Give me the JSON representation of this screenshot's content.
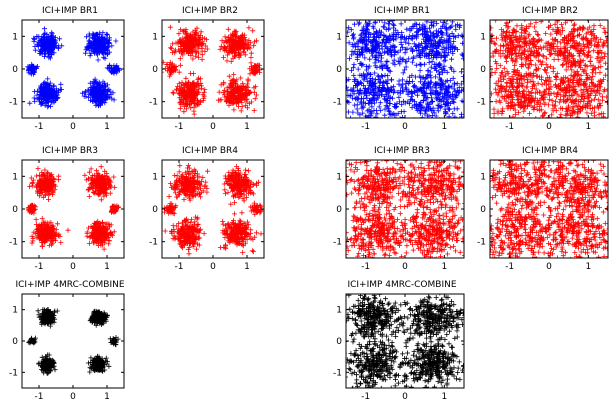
{
  "colors": {
    "blue": "#0000ff",
    "red": "#ff0000",
    "black": "#000000"
  },
  "chart_data": [
    {
      "id": "p1",
      "type": "scatter",
      "marker": "plus",
      "color": "#0000ff",
      "title": "ICI+IMP BR1",
      "xlim": [
        -1.5,
        1.5
      ],
      "ylim": [
        -1.5,
        1.5
      ],
      "xticks": [
        -1,
        0,
        1
      ],
      "yticks": [
        1,
        0,
        -1
      ],
      "clusters": [
        {
          "x": -0.75,
          "y": 0.75,
          "sx": 0.16,
          "sy": 0.16,
          "n": 220
        },
        {
          "x": 0.75,
          "y": 0.75,
          "sx": 0.16,
          "sy": 0.16,
          "n": 220
        },
        {
          "x": -0.75,
          "y": -0.75,
          "sx": 0.16,
          "sy": 0.16,
          "n": 220
        },
        {
          "x": 0.75,
          "y": -0.75,
          "sx": 0.16,
          "sy": 0.16,
          "n": 220
        },
        {
          "x": -1.2,
          "y": 0.0,
          "sx": 0.07,
          "sy": 0.07,
          "n": 45
        },
        {
          "x": 1.2,
          "y": 0.0,
          "sx": 0.07,
          "sy": 0.07,
          "n": 45
        }
      ]
    },
    {
      "id": "p2",
      "type": "scatter",
      "marker": "plus",
      "color": "#ff0000",
      "title": "ICI+IMP BR2",
      "xlim": [
        -1.5,
        1.5
      ],
      "ylim": [
        -1.5,
        1.5
      ],
      "xticks": [
        -1,
        0,
        1
      ],
      "yticks": [
        1,
        0,
        -1
      ],
      "clusters": [
        {
          "x": -0.7,
          "y": 0.75,
          "sx": 0.2,
          "sy": 0.2,
          "n": 220
        },
        {
          "x": 0.7,
          "y": 0.75,
          "sx": 0.2,
          "sy": 0.2,
          "n": 220
        },
        {
          "x": -0.7,
          "y": -0.75,
          "sx": 0.2,
          "sy": 0.2,
          "n": 220
        },
        {
          "x": 0.7,
          "y": -0.75,
          "sx": 0.2,
          "sy": 0.2,
          "n": 220
        },
        {
          "x": -1.25,
          "y": 0.0,
          "sx": 0.08,
          "sy": 0.08,
          "n": 45
        },
        {
          "x": 1.25,
          "y": 0.0,
          "sx": 0.08,
          "sy": 0.08,
          "n": 45
        }
      ]
    },
    {
      "id": "p3",
      "type": "scatter",
      "marker": "plus",
      "color": "#0000ff",
      "title": "ICI+IMP BR1",
      "xlim": [
        -1.5,
        1.5
      ],
      "ylim": [
        -1.5,
        1.5
      ],
      "xticks": [
        -1,
        0,
        1
      ],
      "yticks": [
        1,
        0,
        -1
      ],
      "clusters": [
        {
          "x": -0.75,
          "y": 0.75,
          "sx": 0.42,
          "sy": 0.42,
          "n": 300
        },
        {
          "x": 0.75,
          "y": 0.75,
          "sx": 0.42,
          "sy": 0.42,
          "n": 300
        },
        {
          "x": -0.75,
          "y": -0.75,
          "sx": 0.42,
          "sy": 0.42,
          "n": 300
        },
        {
          "x": 0.75,
          "y": -0.75,
          "sx": 0.42,
          "sy": 0.42,
          "n": 300
        }
      ]
    },
    {
      "id": "p4",
      "type": "scatter",
      "marker": "plus",
      "color": "#ff0000",
      "title": "ICI+IMP BR2",
      "xlim": [
        -1.5,
        1.5
      ],
      "ylim": [
        -1.5,
        1.5
      ],
      "xticks": [
        -1,
        0,
        1
      ],
      "yticks": [
        1,
        0,
        -1
      ],
      "clusters": [
        {
          "x": -0.75,
          "y": 0.75,
          "sx": 0.45,
          "sy": 0.45,
          "n": 300
        },
        {
          "x": 0.75,
          "y": 0.75,
          "sx": 0.45,
          "sy": 0.45,
          "n": 300
        },
        {
          "x": -0.75,
          "y": -0.75,
          "sx": 0.45,
          "sy": 0.45,
          "n": 300
        },
        {
          "x": 0.75,
          "y": -0.75,
          "sx": 0.45,
          "sy": 0.45,
          "n": 300
        }
      ]
    },
    {
      "id": "p5",
      "type": "scatter",
      "marker": "plus",
      "color": "#ff0000",
      "title": "ICI+IMP BR3",
      "xlim": [
        -1.5,
        1.5
      ],
      "ylim": [
        -1.5,
        1.5
      ],
      "xticks": [
        -1,
        0,
        1
      ],
      "yticks": [
        1,
        0,
        -1
      ],
      "clusters": [
        {
          "x": -0.8,
          "y": 0.75,
          "sx": 0.16,
          "sy": 0.16,
          "n": 220
        },
        {
          "x": 0.8,
          "y": 0.75,
          "sx": 0.16,
          "sy": 0.16,
          "n": 220
        },
        {
          "x": -0.8,
          "y": -0.75,
          "sx": 0.16,
          "sy": 0.16,
          "n": 220
        },
        {
          "x": 0.8,
          "y": -0.75,
          "sx": 0.16,
          "sy": 0.16,
          "n": 220
        },
        {
          "x": -1.2,
          "y": 0.0,
          "sx": 0.06,
          "sy": 0.06,
          "n": 40
        },
        {
          "x": 1.2,
          "y": 0.0,
          "sx": 0.06,
          "sy": 0.06,
          "n": 40
        }
      ]
    },
    {
      "id": "p6",
      "type": "scatter",
      "marker": "plus",
      "color": "#ff0000",
      "title": "ICI+IMP BR4",
      "xlim": [
        -1.5,
        1.5
      ],
      "ylim": [
        -1.5,
        1.5
      ],
      "xticks": [
        -1,
        0,
        1
      ],
      "yticks": [
        1,
        0,
        -1
      ],
      "clusters": [
        {
          "x": -0.75,
          "y": 0.75,
          "sx": 0.2,
          "sy": 0.2,
          "n": 220
        },
        {
          "x": 0.75,
          "y": 0.75,
          "sx": 0.2,
          "sy": 0.2,
          "n": 220
        },
        {
          "x": -0.75,
          "y": -0.75,
          "sx": 0.2,
          "sy": 0.2,
          "n": 220
        },
        {
          "x": 0.75,
          "y": -0.75,
          "sx": 0.2,
          "sy": 0.2,
          "n": 220
        },
        {
          "x": -1.25,
          "y": 0.0,
          "sx": 0.08,
          "sy": 0.08,
          "n": 40
        },
        {
          "x": 1.25,
          "y": 0.0,
          "sx": 0.08,
          "sy": 0.08,
          "n": 40
        }
      ]
    },
    {
      "id": "p7",
      "type": "scatter",
      "marker": "plus",
      "color": "#ff0000",
      "title": "ICI+IMP BR3",
      "xlim": [
        -1.5,
        1.5
      ],
      "ylim": [
        -1.5,
        1.5
      ],
      "xticks": [
        -1,
        0,
        1
      ],
      "yticks": [
        1,
        0,
        -1
      ],
      "clusters": [
        {
          "x": -0.75,
          "y": 0.75,
          "sx": 0.42,
          "sy": 0.42,
          "n": 300
        },
        {
          "x": 0.75,
          "y": 0.75,
          "sx": 0.42,
          "sy": 0.42,
          "n": 300
        },
        {
          "x": -0.75,
          "y": -0.75,
          "sx": 0.42,
          "sy": 0.42,
          "n": 300
        },
        {
          "x": 0.75,
          "y": -0.75,
          "sx": 0.42,
          "sy": 0.42,
          "n": 300
        }
      ]
    },
    {
      "id": "p8",
      "type": "scatter",
      "marker": "plus",
      "color": "#ff0000",
      "title": "ICI+IMP BR4",
      "xlim": [
        -1.5,
        1.5
      ],
      "ylim": [
        -1.5,
        1.5
      ],
      "xticks": [
        -1,
        0,
        1
      ],
      "yticks": [
        1,
        0,
        -1
      ],
      "clusters": [
        {
          "x": -0.75,
          "y": 0.75,
          "sx": 0.45,
          "sy": 0.45,
          "n": 300
        },
        {
          "x": 0.75,
          "y": 0.75,
          "sx": 0.45,
          "sy": 0.45,
          "n": 300
        },
        {
          "x": -0.75,
          "y": -0.75,
          "sx": 0.45,
          "sy": 0.45,
          "n": 300
        },
        {
          "x": 0.75,
          "y": -0.75,
          "sx": 0.45,
          "sy": 0.45,
          "n": 300
        }
      ]
    },
    {
      "id": "p9",
      "type": "scatter",
      "marker": "plus",
      "color": "#000000",
      "title": "ICI+IMP 4MRC-COMBINE",
      "xlim": [
        -1.5,
        1.5
      ],
      "ylim": [
        -1.5,
        1.5
      ],
      "xticks": [
        -1,
        0,
        1
      ],
      "yticks": [
        1,
        0,
        -1
      ],
      "clusters": [
        {
          "x": -0.75,
          "y": 0.75,
          "sx": 0.1,
          "sy": 0.1,
          "n": 200
        },
        {
          "x": 0.75,
          "y": 0.75,
          "sx": 0.1,
          "sy": 0.1,
          "n": 200
        },
        {
          "x": -0.75,
          "y": -0.75,
          "sx": 0.1,
          "sy": 0.1,
          "n": 200
        },
        {
          "x": 0.75,
          "y": -0.75,
          "sx": 0.1,
          "sy": 0.1,
          "n": 200
        },
        {
          "x": -1.2,
          "y": 0.0,
          "sx": 0.05,
          "sy": 0.05,
          "n": 30
        },
        {
          "x": 1.2,
          "y": 0.0,
          "sx": 0.05,
          "sy": 0.05,
          "n": 30
        }
      ]
    },
    {
      "id": "p10",
      "type": "scatter",
      "marker": "plus",
      "color": "#000000",
      "title": "ICI+IMP 4MRC-COMBINE",
      "xlim": [
        -1.5,
        1.5
      ],
      "ylim": [
        -1.5,
        1.5
      ],
      "xticks": [
        -1,
        0,
        1
      ],
      "yticks": [
        1,
        0,
        -1
      ],
      "clusters": [
        {
          "x": -0.75,
          "y": 0.75,
          "sx": 0.35,
          "sy": 0.35,
          "n": 300
        },
        {
          "x": 0.75,
          "y": 0.75,
          "sx": 0.35,
          "sy": 0.35,
          "n": 300
        },
        {
          "x": -0.75,
          "y": -0.75,
          "sx": 0.35,
          "sy": 0.35,
          "n": 300
        },
        {
          "x": 0.75,
          "y": -0.75,
          "sx": 0.35,
          "sy": 0.35,
          "n": 300
        }
      ]
    }
  ]
}
